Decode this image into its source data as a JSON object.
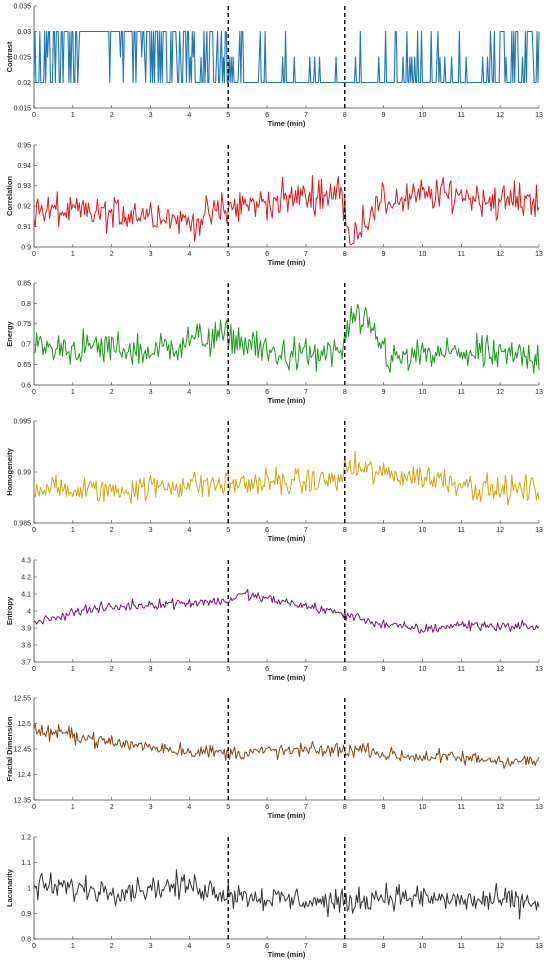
{
  "chart_data": [
    {
      "type": "line",
      "ylabel": "Contrast",
      "xlabel": "Time (min)",
      "color": "#1f77b4",
      "xlim": [
        0,
        13
      ],
      "ylim": [
        0.015,
        0.035
      ],
      "yticks": [
        "0.015",
        "0.02",
        "0.025",
        "0.03",
        "0.035"
      ],
      "xticks": [
        "0",
        "1",
        "2",
        "3",
        "4",
        "5",
        "6",
        "7",
        "8",
        "9",
        "10",
        "11",
        "12",
        "13"
      ],
      "vlines": [
        5,
        8
      ],
      "series_profile": {
        "kind": "binary",
        "low": 0.02,
        "high": 0.03,
        "mid": 0.025,
        "high_freq_by_minute": [
          0.55,
          0.7,
          0.75,
          0.6,
          0.3,
          0.25,
          0.08,
          0.03,
          0.02,
          0.08,
          0.05,
          0.1,
          0.45,
          0.5
        ],
        "flat_high_ranges": [
          [
            1.3,
            1.8
          ]
        ]
      }
    },
    {
      "type": "line",
      "ylabel": "Correlation",
      "xlabel": "Time (min)",
      "color": "#e3191c",
      "xlim": [
        0,
        13
      ],
      "ylim": [
        0.9,
        0.95
      ],
      "yticks": [
        "0.9",
        "0.91",
        "0.92",
        "0.93",
        "0.94",
        "0.95"
      ],
      "xticks": [
        "0",
        "1",
        "2",
        "3",
        "4",
        "5",
        "6",
        "7",
        "8",
        "9",
        "10",
        "11",
        "12",
        "13"
      ],
      "vlines": [
        5,
        8
      ],
      "series_profile": {
        "kind": "noisy",
        "trend_x": [
          0,
          1,
          2,
          3,
          4,
          5,
          6,
          7,
          7.9,
          8.1,
          8.6,
          9,
          10,
          11,
          12,
          13
        ],
        "trend_y": [
          0.918,
          0.917,
          0.916,
          0.917,
          0.912,
          0.919,
          0.922,
          0.925,
          0.927,
          0.905,
          0.915,
          0.922,
          0.925,
          0.926,
          0.922,
          0.924
        ],
        "noise": 0.007
      }
    },
    {
      "type": "line",
      "ylabel": "Energy",
      "xlabel": "Time (min)",
      "color": "#1a9a1a",
      "xlim": [
        0,
        13
      ],
      "ylim": [
        0.6,
        0.85
      ],
      "yticks": [
        "0.6",
        "0.65",
        "0.7",
        "0.75",
        "0.8",
        "0.85"
      ],
      "xticks": [
        "0",
        "1",
        "2",
        "3",
        "4",
        "5",
        "6",
        "7",
        "8",
        "9",
        "10",
        "11",
        "12",
        "13"
      ],
      "vlines": [
        5,
        8
      ],
      "series_profile": {
        "kind": "noisy",
        "trend_x": [
          0,
          1,
          2,
          3,
          4,
          5,
          6,
          7,
          7.9,
          8.2,
          8.8,
          9.2,
          10,
          11,
          12,
          13
        ],
        "trend_y": [
          0.69,
          0.69,
          0.69,
          0.68,
          0.71,
          0.72,
          0.68,
          0.67,
          0.68,
          0.77,
          0.72,
          0.66,
          0.67,
          0.68,
          0.67,
          0.67
        ],
        "noise": 0.035
      }
    },
    {
      "type": "line",
      "ylabel": "Homogeneity",
      "xlabel": "Time (min)",
      "color": "#d4a514",
      "xlim": [
        0,
        13
      ],
      "ylim": [
        0.985,
        0.995
      ],
      "yticks": [
        "0.985",
        "0.99",
        "0.995"
      ],
      "xticks": [
        "0",
        "1",
        "2",
        "3",
        "4",
        "5",
        "6",
        "7",
        "8",
        "9",
        "10",
        "11",
        "12",
        "13"
      ],
      "vlines": [
        5,
        8
      ],
      "series_profile": {
        "kind": "noisy",
        "trend_x": [
          0,
          1,
          2,
          3,
          4,
          5,
          6,
          7,
          7.9,
          8.1,
          9,
          10,
          11,
          11.5,
          12,
          13
        ],
        "trend_y": [
          0.9885,
          0.9882,
          0.9882,
          0.9885,
          0.9888,
          0.9888,
          0.989,
          0.989,
          0.9893,
          0.9905,
          0.9898,
          0.9895,
          0.989,
          0.9884,
          0.9882,
          0.9883
        ],
        "noise": 0.0011
      }
    },
    {
      "type": "line",
      "ylabel": "Entropy",
      "xlabel": "Time (min)",
      "color": "#7e1480",
      "xlim": [
        0,
        13
      ],
      "ylim": [
        3.7,
        4.3
      ],
      "yticks": [
        "3.7",
        "3.8",
        "3.9",
        "4",
        "4.1",
        "4.2",
        "4.3"
      ],
      "xticks": [
        "0",
        "1",
        "2",
        "3",
        "4",
        "5",
        "6",
        "7",
        "8",
        "9",
        "10",
        "11",
        "12",
        "13"
      ],
      "vlines": [
        5,
        8
      ],
      "series_profile": {
        "kind": "noisy",
        "trend_x": [
          0,
          0.5,
          1,
          2,
          3,
          4,
          5,
          5.4,
          6,
          7,
          8,
          9,
          10,
          11,
          12,
          13
        ],
        "trend_y": [
          3.94,
          3.95,
          4.0,
          4.02,
          4.04,
          4.05,
          4.06,
          4.1,
          4.07,
          4.03,
          3.98,
          3.92,
          3.89,
          3.92,
          3.91,
          3.91
        ],
        "noise": 0.025
      }
    },
    {
      "type": "line",
      "ylabel": "Fractal Dimension",
      "xlabel": "Time (min)",
      "color": "#8b4513",
      "xlim": [
        0,
        13
      ],
      "ylim": [
        12.35,
        12.55
      ],
      "yticks": [
        "12.35",
        "12.4",
        "12.45",
        "12.5",
        "12.55"
      ],
      "xticks": [
        "0",
        "1",
        "2",
        "3",
        "4",
        "5",
        "6",
        "7",
        "8",
        "9",
        "10",
        "11",
        "12",
        "13"
      ],
      "vlines": [
        5,
        8
      ],
      "series_profile": {
        "kind": "noisy",
        "trend_x": [
          0,
          1,
          2,
          3,
          4,
          5,
          6,
          7,
          8,
          8.7,
          9,
          10,
          11,
          12,
          13
        ],
        "trend_y": [
          12.485,
          12.478,
          12.462,
          12.455,
          12.446,
          12.442,
          12.445,
          12.447,
          12.448,
          12.45,
          12.438,
          12.435,
          12.432,
          12.428,
          12.425
        ],
        "noise": 0.012
      }
    },
    {
      "type": "line",
      "ylabel": "Lacunarity",
      "xlabel": "Time (min)",
      "color": "#333333",
      "xlim": [
        0,
        13
      ],
      "ylim": [
        0.8,
        1.2
      ],
      "yticks": [
        "0.8",
        "0.9",
        "1",
        "1.1",
        "1.2"
      ],
      "xticks": [
        "0",
        "1",
        "2",
        "3",
        "4",
        "5",
        "6",
        "7",
        "8",
        "9",
        "10",
        "11",
        "12",
        "13"
      ],
      "vlines": [
        5,
        8
      ],
      "series_profile": {
        "kind": "noisy",
        "trend_x": [
          0,
          1,
          2,
          3,
          4,
          5,
          6,
          7,
          8,
          9,
          10,
          11,
          12,
          13
        ],
        "trend_y": [
          1.01,
          1.0,
          0.99,
          1.0,
          1.01,
          0.98,
          0.96,
          0.95,
          0.94,
          0.97,
          0.96,
          0.95,
          0.95,
          0.94
        ],
        "noise": 0.04
      }
    }
  ]
}
